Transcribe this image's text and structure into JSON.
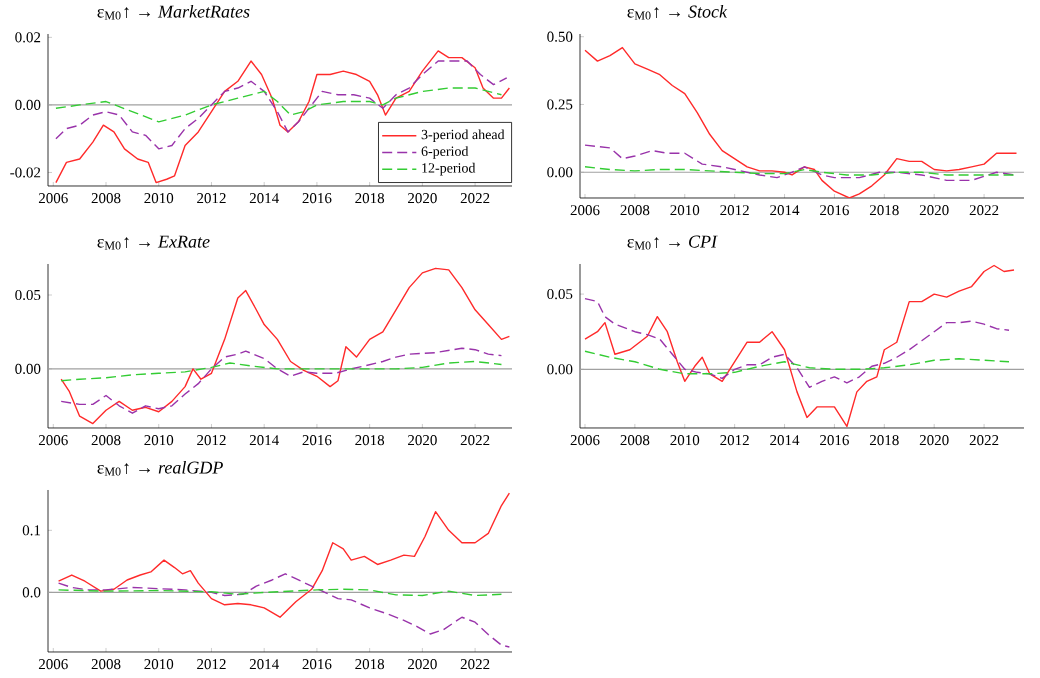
{
  "chart_data": [
    {
      "type": "line",
      "title": "ε$_{M0}$↑ → *MarketRates*",
      "legend": "bottom right",
      "xlim": [
        2005.8,
        2023.4
      ],
      "ylim": [
        -0.024,
        0.021
      ],
      "xticks": [
        2006,
        2008,
        2010,
        2012,
        2014,
        2016,
        2018,
        2020,
        2022
      ],
      "yticks": [
        {
          "value": -0.02,
          "label": "-0.02"
        },
        {
          "value": 0,
          "label": "0.00"
        },
        {
          "value": 0.02,
          "label": "0.02"
        }
      ],
      "ref_lines": [
        {
          "axis": "y",
          "value": 0,
          "color": "#a0a0a0"
        }
      ],
      "series": [
        {
          "name": "3-period ahead",
          "color": "#ff2a2a",
          "line_style": "solid",
          "x": [
            2006.1,
            2006.5,
            2007,
            2007.5,
            2007.9,
            2008.3,
            2008.7,
            2009.2,
            2009.6,
            2009.9,
            2010.3,
            2010.6,
            2011,
            2011.5,
            2012,
            2012.5,
            2013,
            2013.5,
            2013.9,
            2014.3,
            2014.6,
            2014.9,
            2015.3,
            2015.7,
            2016,
            2016.5,
            2017,
            2017.5,
            2018,
            2018.3,
            2018.6,
            2019,
            2019.5,
            2020,
            2020.6,
            2021,
            2021.5,
            2022,
            2022.3,
            2022.7,
            2023,
            2023.3
          ],
          "values": [
            -0.023,
            -0.017,
            -0.016,
            -0.011,
            -0.006,
            -0.008,
            -0.013,
            -0.016,
            -0.017,
            -0.023,
            -0.022,
            -0.021,
            -0.012,
            -0.008,
            -0.002,
            0.004,
            0.007,
            0.013,
            0.009,
            0.002,
            -0.006,
            -0.008,
            -0.005,
            0.001,
            0.009,
            0.009,
            0.01,
            0.009,
            0.007,
            0.003,
            -0.003,
            0.002,
            0.004,
            0.01,
            0.016,
            0.014,
            0.014,
            0.011,
            0.005,
            0.002,
            0.002,
            0.005
          ]
        },
        {
          "name": "6-period",
          "color": "#9933aa",
          "line_style": "dashed",
          "x": [
            2006.1,
            2006.5,
            2007,
            2007.5,
            2008,
            2008.5,
            2009,
            2009.5,
            2010,
            2010.5,
            2011,
            2011.5,
            2012,
            2012.5,
            2013,
            2013.5,
            2014,
            2014.5,
            2014.9,
            2015.3,
            2015.8,
            2016.2,
            2016.8,
            2017.4,
            2018,
            2018.5,
            2019,
            2019.5,
            2020,
            2020.6,
            2021.2,
            2021.7,
            2022.2,
            2022.7,
            2023.2
          ],
          "values": [
            -0.01,
            -0.007,
            -0.006,
            -0.003,
            -0.002,
            -0.003,
            -0.008,
            -0.009,
            -0.013,
            -0.012,
            -0.007,
            -0.004,
            0.0,
            0.004,
            0.005,
            0.007,
            0.004,
            -0.002,
            -0.008,
            -0.005,
            0.0,
            0.004,
            0.003,
            0.003,
            0.002,
            -0.001,
            0.003,
            0.005,
            0.009,
            0.013,
            0.013,
            0.013,
            0.009,
            0.006,
            0.008
          ]
        },
        {
          "name": "12-period",
          "color": "#33cc33",
          "line_style": "dashed",
          "x": [
            2006.1,
            2007,
            2008,
            2009,
            2010,
            2011,
            2012,
            2013,
            2014,
            2014.5,
            2015,
            2015.5,
            2016,
            2017,
            2018,
            2018.5,
            2019,
            2020,
            2021,
            2022,
            2023
          ],
          "values": [
            -0.001,
            0.0,
            0.001,
            -0.002,
            -0.005,
            -0.003,
            0.0,
            0.002,
            0.004,
            0.001,
            -0.003,
            -0.002,
            0.0,
            0.001,
            0.001,
            0.0,
            0.002,
            0.004,
            0.005,
            0.005,
            0.003
          ]
        }
      ]
    },
    {
      "type": "line",
      "title": "ε$_{M0}$↑ → *Stock*",
      "xlim": [
        2005.8,
        2023.6
      ],
      "ylim": [
        -0.095,
        0.51
      ],
      "xticks": [
        2006,
        2008,
        2010,
        2012,
        2014,
        2016,
        2018,
        2020,
        2022
      ],
      "yticks": [
        {
          "value": 0,
          "label": "0.00"
        },
        {
          "value": 0.25,
          "label": "0.25"
        },
        {
          "value": 0.5,
          "label": "0.50"
        }
      ],
      "ref_lines": [
        {
          "axis": "y",
          "value": 0,
          "color": "#a0a0a0"
        }
      ],
      "series": [
        {
          "color": "#ff2a2a",
          "line_style": "solid",
          "x": [
            2006,
            2006.5,
            2007,
            2007.5,
            2008,
            2008.5,
            2009,
            2009.5,
            2010,
            2010.5,
            2011,
            2011.5,
            2012,
            2012.5,
            2013,
            2013.5,
            2014,
            2014.3,
            2014.8,
            2015.2,
            2015.5,
            2016,
            2016.6,
            2017,
            2017.5,
            2018,
            2018.5,
            2019,
            2019.5,
            2020,
            2020.5,
            2021,
            2021.5,
            2022,
            2022.5,
            2023,
            2023.3
          ],
          "values": [
            0.45,
            0.41,
            0.43,
            0.46,
            0.4,
            0.38,
            0.36,
            0.32,
            0.29,
            0.22,
            0.14,
            0.08,
            0.05,
            0.02,
            0.005,
            0.005,
            0.0,
            -0.01,
            0.02,
            0.01,
            -0.03,
            -0.07,
            -0.095,
            -0.08,
            -0.05,
            -0.01,
            0.05,
            0.04,
            0.04,
            0.01,
            0.005,
            0.01,
            0.02,
            0.03,
            0.07,
            0.07,
            0.07
          ]
        },
        {
          "color": "#9933aa",
          "line_style": "dashed",
          "x": [
            2006,
            2007,
            2007.5,
            2008,
            2008.7,
            2009.3,
            2010,
            2010.7,
            2011.5,
            2012,
            2013,
            2013.7,
            2014.3,
            2014.8,
            2015.5,
            2016,
            2017,
            2017.8,
            2018.5,
            2019.5,
            2020.5,
            2021.5,
            2022.5,
            2023.2
          ],
          "values": [
            0.1,
            0.09,
            0.05,
            0.06,
            0.08,
            0.07,
            0.07,
            0.03,
            0.02,
            0.01,
            -0.01,
            -0.02,
            0.0,
            0.02,
            -0.01,
            -0.02,
            -0.02,
            0.0,
            0.0,
            -0.01,
            -0.03,
            -0.03,
            0.0,
            -0.01
          ]
        },
        {
          "color": "#33cc33",
          "line_style": "dashed",
          "x": [
            2006,
            2007,
            2008,
            2009,
            2010,
            2011,
            2012,
            2013,
            2014,
            2014.8,
            2015.5,
            2016.5,
            2017.5,
            2018.5,
            2019.5,
            2020.5,
            2021.5,
            2022.5,
            2023.2
          ],
          "values": [
            0.02,
            0.01,
            0.005,
            0.01,
            0.01,
            0.005,
            0.0,
            -0.005,
            -0.005,
            0.01,
            0.0,
            -0.01,
            -0.01,
            0.0,
            0.0,
            -0.01,
            -0.01,
            -0.01,
            -0.01
          ]
        }
      ]
    },
    {
      "type": "line",
      "title": "ε$_{M0}$↑ → *ExRate*",
      "xlim": [
        2005.8,
        2023.4
      ],
      "ylim": [
        -0.04,
        0.071
      ],
      "xticks": [
        2006,
        2008,
        2010,
        2012,
        2014,
        2016,
        2018,
        2020,
        2022
      ],
      "yticks": [
        {
          "value": 0,
          "label": "0.00"
        },
        {
          "value": 0.05,
          "label": "0.05"
        }
      ],
      "ref_lines": [
        {
          "axis": "y",
          "value": 0,
          "color": "#a0a0a0"
        }
      ],
      "series": [
        {
          "color": "#ff2a2a",
          "line_style": "solid",
          "x": [
            2006.3,
            2006.6,
            2007,
            2007.5,
            2008,
            2008.5,
            2009,
            2009.5,
            2010,
            2010.5,
            2011,
            2011.3,
            2011.6,
            2012,
            2012.5,
            2013,
            2013.3,
            2013.7,
            2014,
            2014.5,
            2015,
            2015.5,
            2016,
            2016.5,
            2016.8,
            2017.1,
            2017.5,
            2018,
            2018.5,
            2019,
            2019.5,
            2020,
            2020.5,
            2021,
            2021.5,
            2022,
            2022.5,
            2023,
            2023.3
          ],
          "values": [
            -0.007,
            -0.015,
            -0.032,
            -0.037,
            -0.028,
            -0.022,
            -0.028,
            -0.026,
            -0.029,
            -0.022,
            -0.012,
            0.0,
            -0.007,
            -0.003,
            0.02,
            0.048,
            0.053,
            0.04,
            0.03,
            0.02,
            0.005,
            -0.001,
            -0.005,
            -0.012,
            -0.008,
            0.015,
            0.008,
            0.02,
            0.025,
            0.04,
            0.055,
            0.065,
            0.068,
            0.067,
            0.055,
            0.04,
            0.03,
            0.02,
            0.022
          ]
        },
        {
          "color": "#9933aa",
          "line_style": "dashed",
          "x": [
            2006.3,
            2007,
            2007.5,
            2008,
            2008.5,
            2009,
            2009.5,
            2010,
            2010.5,
            2011,
            2011.5,
            2012,
            2012.5,
            2013,
            2013.3,
            2014,
            2014.5,
            2015,
            2015.5,
            2016,
            2016.7,
            2017.3,
            2017.8,
            2018.5,
            2019,
            2019.5,
            2020.5,
            2021.5,
            2022,
            2022.5,
            2023
          ],
          "values": [
            -0.022,
            -0.024,
            -0.024,
            -0.018,
            -0.025,
            -0.03,
            -0.025,
            -0.027,
            -0.025,
            -0.017,
            -0.01,
            0.0,
            0.008,
            0.01,
            0.012,
            0.007,
            0.0,
            -0.005,
            -0.002,
            -0.003,
            -0.003,
            0.0,
            0.002,
            0.005,
            0.008,
            0.01,
            0.011,
            0.014,
            0.013,
            0.01,
            0.009
          ]
        },
        {
          "color": "#33cc33",
          "line_style": "dashed",
          "x": [
            2006.3,
            2007,
            2008,
            2009,
            2010,
            2011,
            2012,
            2012.7,
            2013.5,
            2014.5,
            2016,
            2017.5,
            2019,
            2020,
            2021,
            2022,
            2023
          ],
          "values": [
            -0.008,
            -0.007,
            -0.006,
            -0.004,
            -0.003,
            -0.002,
            0.001,
            0.004,
            0.002,
            0.0,
            0.0,
            0.0,
            0.0,
            0.001,
            0.004,
            0.005,
            0.003
          ]
        }
      ]
    },
    {
      "type": "line",
      "title": "ε$_{M0}$↑ → *CPI*",
      "xlim": [
        2005.8,
        2023.6
      ],
      "ylim": [
        -0.039,
        0.07
      ],
      "xticks": [
        2006,
        2008,
        2010,
        2012,
        2014,
        2016,
        2018,
        2020,
        2022
      ],
      "yticks": [
        {
          "value": 0,
          "label": "0.00"
        },
        {
          "value": 0.05,
          "label": "0.05"
        }
      ],
      "ref_lines": [
        {
          "axis": "y",
          "value": 0,
          "color": "#a0a0a0"
        }
      ],
      "series": [
        {
          "color": "#ff2a2a",
          "line_style": "solid",
          "x": [
            2006,
            2006.5,
            2006.8,
            2007.2,
            2007.8,
            2008.5,
            2008.9,
            2009.3,
            2009.7,
            2010,
            2010.4,
            2010.7,
            2011,
            2011.5,
            2012,
            2012.5,
            2013,
            2013.5,
            2014,
            2014.5,
            2014.9,
            2015.3,
            2016,
            2016.5,
            2016.9,
            2017.3,
            2017.7,
            2018,
            2018.5,
            2019,
            2019.5,
            2020,
            2020.5,
            2021,
            2021.5,
            2022,
            2022.4,
            2022.8,
            2023.2
          ],
          "values": [
            0.02,
            0.025,
            0.031,
            0.01,
            0.013,
            0.022,
            0.035,
            0.025,
            0.005,
            -0.008,
            0.002,
            0.008,
            -0.003,
            -0.008,
            0.005,
            0.018,
            0.018,
            0.025,
            0.013,
            -0.015,
            -0.032,
            -0.025,
            -0.025,
            -0.038,
            -0.015,
            -0.008,
            -0.005,
            0.013,
            0.018,
            0.045,
            0.045,
            0.05,
            0.048,
            0.052,
            0.055,
            0.065,
            0.069,
            0.065,
            0.066
          ]
        },
        {
          "color": "#9933aa",
          "line_style": "dashed",
          "x": [
            2006,
            2006.5,
            2006.8,
            2007.2,
            2008,
            2008.5,
            2009,
            2009.5,
            2010,
            2010.5,
            2011,
            2011.5,
            2012,
            2012.5,
            2013,
            2013.5,
            2014,
            2014.5,
            2015,
            2015.5,
            2016,
            2016.5,
            2017,
            2017.5,
            2018,
            2018.5,
            2019,
            2019.5,
            2020,
            2020.5,
            2021,
            2021.5,
            2022,
            2022.5,
            2023
          ],
          "values": [
            0.047,
            0.045,
            0.035,
            0.03,
            0.025,
            0.023,
            0.02,
            0.01,
            0.0,
            -0.002,
            -0.003,
            -0.006,
            0.0,
            0.003,
            0.003,
            0.008,
            0.01,
            0.001,
            -0.012,
            -0.008,
            -0.005,
            -0.009,
            -0.005,
            0.002,
            0.004,
            0.008,
            0.013,
            0.019,
            0.025,
            0.031,
            0.031,
            0.032,
            0.03,
            0.027,
            0.026
          ]
        },
        {
          "color": "#33cc33",
          "line_style": "dashed",
          "x": [
            2006,
            2007,
            2008,
            2009,
            2010,
            2011,
            2012,
            2013,
            2014,
            2015,
            2016,
            2017,
            2018,
            2019,
            2020,
            2021,
            2022,
            2023
          ],
          "values": [
            0.012,
            0.008,
            0.005,
            0.0,
            -0.003,
            -0.003,
            -0.002,
            0.002,
            0.005,
            0.001,
            0.0,
            0.0,
            0.001,
            0.003,
            0.006,
            0.007,
            0.006,
            0.005
          ]
        }
      ]
    },
    {
      "type": "line",
      "title": "ε$_{M0}$↑ → *realGDP*",
      "xlim": [
        2005.8,
        2023.4
      ],
      "ylim": [
        -0.096,
        0.165
      ],
      "xticks": [
        2006,
        2008,
        2010,
        2012,
        2014,
        2016,
        2018,
        2020,
        2022
      ],
      "yticks": [
        {
          "value": 0,
          "label": "0.0"
        },
        {
          "value": 0.1,
          "label": "0.1"
        }
      ],
      "ref_lines": [
        {
          "axis": "y",
          "value": 0,
          "color": "#a0a0a0"
        }
      ],
      "series": [
        {
          "color": "#ff2a2a",
          "line_style": "solid",
          "x": [
            2006.2,
            2006.7,
            2007.2,
            2007.8,
            2008.3,
            2008.8,
            2009.3,
            2009.7,
            2010.2,
            2010.6,
            2010.9,
            2011.2,
            2011.5,
            2012,
            2012.5,
            2013,
            2013.5,
            2014,
            2014.6,
            2015.2,
            2015.8,
            2016.2,
            2016.6,
            2017,
            2017.3,
            2017.8,
            2018.3,
            2018.8,
            2019.3,
            2019.7,
            2020.1,
            2020.5,
            2021,
            2021.5,
            2022,
            2022.5,
            2023,
            2023.3
          ],
          "values": [
            0.018,
            0.028,
            0.018,
            0.002,
            0.005,
            0.02,
            0.028,
            0.033,
            0.052,
            0.04,
            0.03,
            0.035,
            0.015,
            -0.01,
            -0.02,
            -0.018,
            -0.02,
            -0.025,
            -0.04,
            -0.015,
            0.005,
            0.035,
            0.08,
            0.07,
            0.052,
            0.058,
            0.045,
            0.052,
            0.06,
            0.058,
            0.09,
            0.13,
            0.1,
            0.08,
            0.08,
            0.095,
            0.14,
            0.16
          ]
        },
        {
          "color": "#9933aa",
          "line_style": "dashed",
          "x": [
            2006.2,
            2006.7,
            2007.3,
            2008,
            2009,
            2010,
            2011,
            2012,
            2012.5,
            2013.2,
            2013.7,
            2014.3,
            2014.8,
            2015.3,
            2015.8,
            2016.3,
            2016.8,
            2017.3,
            2018,
            2018.7,
            2019.3,
            2019.8,
            2020.3,
            2020.8,
            2021.5,
            2022,
            2022.5,
            2023,
            2023.3
          ],
          "values": [
            0.015,
            0.008,
            0.004,
            0.004,
            0.008,
            0.006,
            0.004,
            0.0,
            -0.005,
            -0.003,
            0.01,
            0.02,
            0.03,
            0.02,
            0.01,
            0.0,
            -0.01,
            -0.012,
            -0.025,
            -0.035,
            -0.045,
            -0.055,
            -0.067,
            -0.06,
            -0.04,
            -0.048,
            -0.068,
            -0.085,
            -0.088
          ]
        },
        {
          "color": "#33cc33",
          "line_style": "dashed",
          "x": [
            2006.2,
            2008,
            2010,
            2012,
            2013,
            2014,
            2016,
            2017,
            2018,
            2019,
            2020,
            2021,
            2022,
            2023
          ],
          "values": [
            0.004,
            0.002,
            0.003,
            0.001,
            -0.003,
            0.0,
            0.004,
            0.005,
            0.004,
            -0.004,
            -0.005,
            0.002,
            -0.005,
            -0.003
          ]
        }
      ]
    }
  ]
}
